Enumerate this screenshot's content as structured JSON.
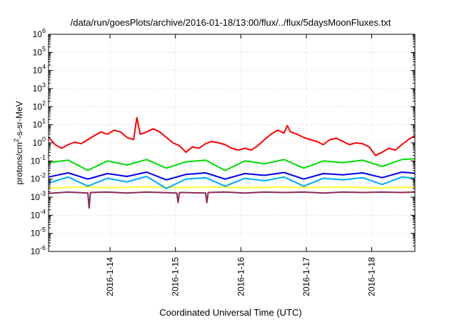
{
  "chart_data": {
    "type": "line",
    "title": "/data/run/goesPlots/archive/2016-01-18/13:00/flux/../flux/5daysMoonFluxes.txt",
    "xlabel": "Coordinated Universal Time (UTC)",
    "ylabel": {
      "prefix": "protons/cm",
      "sup": "2",
      "suffix": "-s-sr-MeV"
    },
    "x_unit": "days",
    "xlim": [
      0,
      5.6
    ],
    "x_ticks": [
      {
        "x": 0.94,
        "label": "2016-1-14"
      },
      {
        "x": 1.94,
        "label": "2016-1-15"
      },
      {
        "x": 2.94,
        "label": "2016-1-16"
      },
      {
        "x": 3.94,
        "label": "2016-1-17"
      },
      {
        "x": 4.94,
        "label": "2016-1-18"
      }
    ],
    "y_scale": "log",
    "ylim": [
      1e-06,
      1000000.0
    ],
    "y_ticks": [
      {
        "value": 1e-06,
        "base": "10",
        "exp": "-6"
      },
      {
        "value": 1e-05,
        "base": "10",
        "exp": "-5"
      },
      {
        "value": 0.0001,
        "base": "10",
        "exp": "-4"
      },
      {
        "value": 0.001,
        "base": "10",
        "exp": "-3"
      },
      {
        "value": 0.01,
        "base": "10",
        "exp": "-2"
      },
      {
        "value": 0.1,
        "base": "10",
        "exp": "-1"
      },
      {
        "value": 1,
        "base": "10",
        "exp": "0"
      },
      {
        "value": 10.0,
        "base": "10",
        "exp": "1"
      },
      {
        "value": 100.0,
        "base": "10",
        "exp": "2"
      },
      {
        "value": 1000.0,
        "base": "10",
        "exp": "3"
      },
      {
        "value": 10000.0,
        "base": "10",
        "exp": "4"
      },
      {
        "value": 100000.0,
        "base": "10",
        "exp": "5"
      },
      {
        "value": 1000000.0,
        "base": "10",
        "exp": "6"
      }
    ],
    "grid": true,
    "legend": "none",
    "series": [
      {
        "color": "#ffff33",
        "x": [
          0,
          0.5,
          1,
          1.5,
          2,
          2.5,
          3,
          3.5,
          4,
          4.5,
          5,
          5.6
        ],
        "y": [
          0.0032,
          0.0036,
          0.0033,
          0.0037,
          0.0034,
          0.0036,
          0.0033,
          0.0036,
          0.0034,
          0.0036,
          0.0033,
          0.0035
        ]
      },
      {
        "color": "#00dd00",
        "x": [
          0,
          0.3,
          0.6,
          0.9,
          1.2,
          1.5,
          1.8,
          2.1,
          2.4,
          2.7,
          3.0,
          3.3,
          3.6,
          3.9,
          4.2,
          4.5,
          4.8,
          5.1,
          5.4,
          5.6
        ],
        "y": [
          0.08,
          0.11,
          0.03,
          0.1,
          0.06,
          0.12,
          0.04,
          0.09,
          0.11,
          0.03,
          0.1,
          0.07,
          0.12,
          0.04,
          0.1,
          0.08,
          0.11,
          0.05,
          0.12,
          0.13
        ]
      },
      {
        "color": "#00aaff",
        "x": [
          0,
          0.3,
          0.6,
          0.9,
          1.2,
          1.5,
          1.8,
          2.1,
          2.4,
          2.7,
          3.0,
          3.3,
          3.6,
          3.9,
          4.2,
          4.5,
          4.8,
          5.1,
          5.4,
          5.6
        ],
        "y": [
          0.006,
          0.013,
          0.004,
          0.011,
          0.007,
          0.014,
          0.003,
          0.01,
          0.012,
          0.004,
          0.011,
          0.008,
          0.013,
          0.004,
          0.011,
          0.009,
          0.012,
          0.005,
          0.013,
          0.011
        ]
      },
      {
        "color": "#0000ee",
        "x": [
          0,
          0.3,
          0.6,
          0.9,
          1.2,
          1.5,
          1.8,
          2.1,
          2.4,
          2.7,
          3.0,
          3.3,
          3.6,
          3.9,
          4.2,
          4.5,
          4.8,
          5.1,
          5.4,
          5.6
        ],
        "y": [
          0.013,
          0.022,
          0.01,
          0.02,
          0.014,
          0.024,
          0.009,
          0.018,
          0.022,
          0.01,
          0.02,
          0.016,
          0.023,
          0.01,
          0.02,
          0.017,
          0.022,
          0.012,
          0.024,
          0.021
        ]
      },
      {
        "color": "#8b2a5a",
        "x": [
          0,
          0.3,
          0.6,
          0.62,
          0.64,
          0.9,
          1.2,
          1.5,
          1.96,
          1.98,
          2.0,
          2.4,
          2.42,
          2.44,
          2.7,
          3.0,
          3.3,
          3.6,
          3.9,
          4.2,
          4.5,
          4.8,
          5.1,
          5.4,
          5.6
        ],
        "y": [
          0.0016,
          0.0019,
          0.0017,
          0.00025,
          0.0018,
          0.0019,
          0.0017,
          0.0019,
          0.0017,
          0.0005,
          0.0018,
          0.0017,
          0.0005,
          0.0018,
          0.0019,
          0.0017,
          0.0019,
          0.0018,
          0.0019,
          0.0017,
          0.0019,
          0.0018,
          0.0019,
          0.0018,
          0.0019
        ]
      },
      {
        "color": "#ff0000",
        "x": [
          0,
          0.1,
          0.2,
          0.3,
          0.4,
          0.5,
          0.6,
          0.7,
          0.8,
          0.9,
          1.0,
          1.1,
          1.2,
          1.3,
          1.35,
          1.4,
          1.5,
          1.6,
          1.7,
          1.8,
          1.9,
          2.0,
          2.1,
          2.2,
          2.3,
          2.4,
          2.5,
          2.6,
          2.7,
          2.8,
          2.9,
          3.0,
          3.1,
          3.2,
          3.3,
          3.4,
          3.5,
          3.6,
          3.65,
          3.7,
          3.8,
          3.9,
          4.0,
          4.1,
          4.2,
          4.3,
          4.4,
          4.5,
          4.6,
          4.7,
          4.8,
          4.9,
          5.0,
          5.1,
          5.2,
          5.3,
          5.4,
          5.5,
          5.6
        ],
        "y": [
          2.0,
          0.8,
          0.5,
          0.8,
          1.1,
          0.9,
          1.5,
          2.5,
          4.0,
          3.0,
          5.0,
          4.0,
          2.0,
          1.5,
          25,
          3.0,
          4.0,
          6.0,
          4.0,
          2.0,
          1.0,
          0.7,
          0.3,
          0.6,
          0.5,
          0.9,
          1.2,
          1.0,
          0.8,
          0.5,
          0.4,
          0.5,
          0.4,
          0.7,
          1.5,
          3.0,
          5.0,
          3.5,
          9.0,
          4.0,
          3.0,
          2.0,
          1.5,
          1.2,
          0.8,
          1.5,
          1.8,
          1.2,
          0.8,
          1.0,
          0.9,
          0.6,
          0.2,
          0.3,
          0.5,
          0.4,
          0.8,
          1.5,
          2.5
        ]
      }
    ]
  }
}
